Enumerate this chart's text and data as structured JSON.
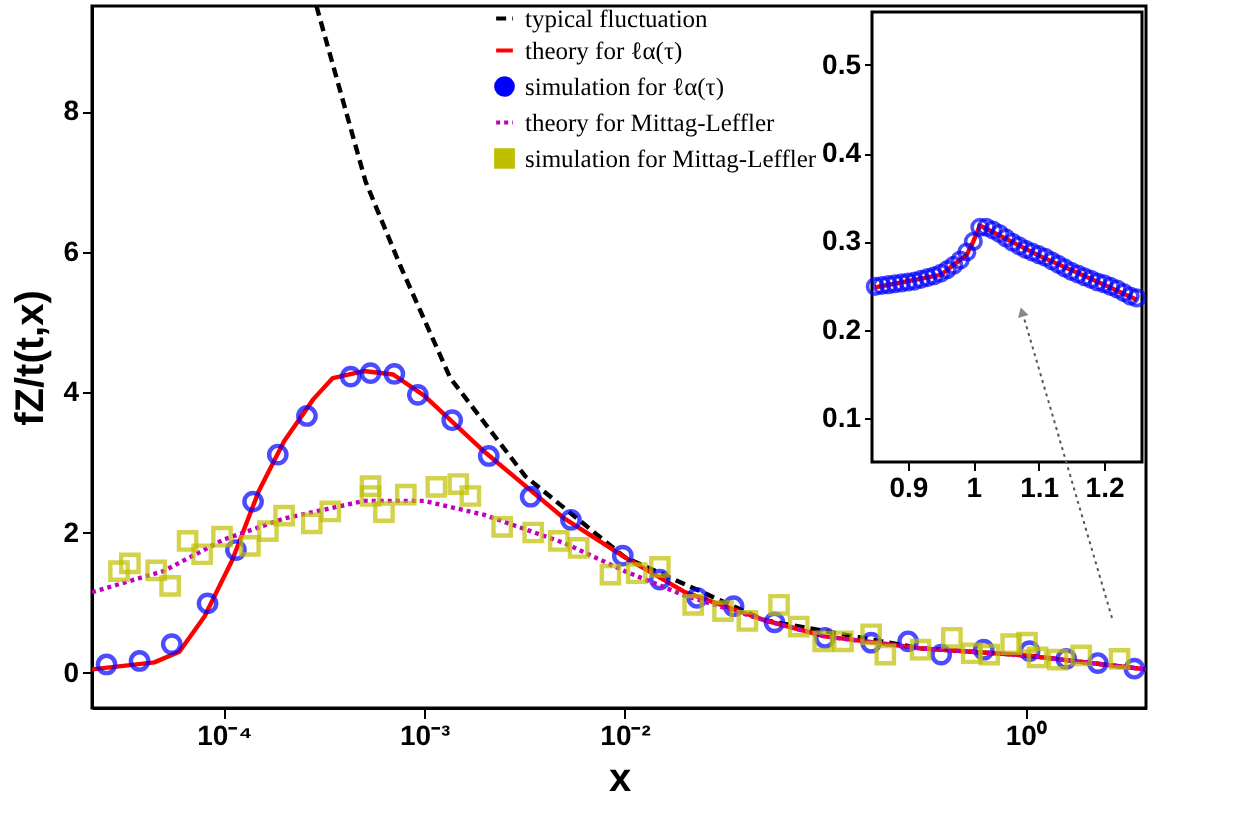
{
  "chart_data": [
    {
      "type": "line",
      "xlabel": "x",
      "ylabel": "fZ/t(t,x)",
      "log": "x",
      "xlim": [
        2.2e-05,
        4
      ],
      "ylim": [
        -0.5,
        9.5
      ],
      "xticks": [
        {
          "value": 0.0001,
          "label": "10⁻⁴"
        },
        {
          "value": 0.001,
          "label": "10⁻³"
        },
        {
          "value": 0.01,
          "label": "10⁻²"
        },
        {
          "value": 1,
          "label": "10⁰"
        }
      ],
      "yticks": [
        0,
        2,
        4,
        6,
        8
      ],
      "grid": false,
      "legend": "top",
      "series": [
        {
          "name": "typical fluctuation",
          "line_style": "dashed",
          "color": "#000000",
          "x": [
            0.00029,
            0.00051,
            0.00076,
            0.00135,
            0.0032,
            0.01,
            0.05,
            0.3,
            1,
            4
          ],
          "values": [
            9.5,
            7.0,
            5.8,
            4.2,
            2.8,
            1.65,
            0.75,
            0.35,
            0.25,
            0.05
          ]
        },
        {
          "name": "theory for ℓα(τ)",
          "line_style": "solid",
          "color": "#ff0000",
          "x": [
            2.2e-05,
            4.5e-05,
            6e-05,
            8e-05,
            0.00011,
            0.00015,
            0.0002,
            0.00028,
            0.00035,
            0.0005,
            0.0007,
            0.001,
            0.002,
            0.005,
            0.01,
            0.02,
            0.05,
            0.1,
            0.3,
            1,
            2,
            4
          ],
          "values": [
            0.05,
            0.15,
            0.3,
            0.8,
            1.6,
            2.6,
            3.3,
            3.9,
            4.2,
            4.3,
            4.25,
            3.95,
            3.15,
            2.2,
            1.65,
            1.15,
            0.75,
            0.52,
            0.35,
            0.25,
            0.15,
            0.05
          ]
        },
        {
          "name": "simulation for ℓα(τ)",
          "type": "scatter",
          "marker": "circle",
          "color": "#0000ff",
          "x": [
            2.6e-05,
            3.8e-05,
            5.5e-05,
            8.3e-05,
            0.000115,
            0.00014,
            0.000186,
            0.00026,
            0.00043,
            0.00054,
            0.00071,
            0.00093,
            0.00138,
            0.0021,
            0.0034,
            0.0054,
            0.0098,
            0.015,
            0.023,
            0.035,
            0.056,
            0.1,
            0.17,
            0.26,
            0.38,
            0.62,
            1.05,
            1.6,
            2.3,
            3.5
          ],
          "values": [
            0.12,
            0.17,
            0.41,
            0.99,
            1.75,
            2.44,
            3.11,
            3.66,
            4.22,
            4.27,
            4.26,
            3.96,
            3.6,
            3.09,
            2.51,
            2.18,
            1.67,
            1.33,
            1.07,
            0.95,
            0.72,
            0.5,
            0.43,
            0.45,
            0.26,
            0.33,
            0.31,
            0.2,
            0.14,
            0.06
          ]
        },
        {
          "name": "theory for Mittag-Leffler",
          "line_style": "dotted",
          "color": "#bf00bf",
          "x": [
            2.2e-05,
            5e-05,
            0.0001,
            0.0002,
            0.0005,
            0.001,
            0.002,
            0.005,
            0.01,
            0.02,
            0.05,
            0.1,
            0.3,
            1,
            4
          ],
          "values": [
            1.15,
            1.45,
            1.9,
            2.2,
            2.45,
            2.45,
            2.25,
            1.85,
            1.45,
            1.1,
            0.75,
            0.52,
            0.35,
            0.25,
            0.05
          ]
        },
        {
          "name": "simulation for Mittag-Leffler",
          "type": "scatter",
          "marker": "square",
          "color": "#bfbf00",
          "x": [
            3e-05,
            3.4e-05,
            4.6e-05,
            5.4e-05,
            6.6e-05,
            7.8e-05,
            9.8e-05,
            0.000135,
            0.000166,
            0.0002,
            0.000275,
            0.00034,
            0.00054,
            0.00054,
            0.00063,
            0.00081,
            0.00115,
            0.00148,
            0.0017,
            0.00245,
            0.0035,
            0.0047,
            0.0059,
            0.0085,
            0.0115,
            0.015,
            0.022,
            0.031,
            0.041,
            0.059,
            0.074,
            0.098,
            0.123,
            0.17,
            0.2,
            0.3,
            0.43,
            0.54,
            0.66,
            0.85,
            1.02,
            1.15,
            1.45,
            1.9,
            2.95
          ],
          "values": [
            1.45,
            1.56,
            1.46,
            1.24,
            1.88,
            1.69,
            1.94,
            1.81,
            2.02,
            2.24,
            2.13,
            2.3,
            2.66,
            2.52,
            2.29,
            2.54,
            2.65,
            2.69,
            2.52,
            2.08,
            2.0,
            1.88,
            1.78,
            1.4,
            1.42,
            1.51,
            0.97,
            0.88,
            0.74,
            0.97,
            0.66,
            0.45,
            0.45,
            0.55,
            0.26,
            0.33,
            0.5,
            0.28,
            0.26,
            0.41,
            0.43,
            0.22,
            0.19,
            0.25,
            0.2
          ]
        }
      ]
    },
    {
      "type": "scatter",
      "xlim": [
        0.845,
        1.258
      ],
      "ylim": [
        0.05,
        0.56
      ],
      "xticks": [
        0.9,
        1,
        1.1,
        1.2
      ],
      "yticks": [
        0.1,
        0.2,
        0.3,
        0.4,
        0.5
      ],
      "grid": false,
      "series": [
        {
          "type": "line",
          "line_style": "solid",
          "color": "#ff0000",
          "x": [
            0.85,
            0.95,
            0.99,
            1.0,
            1.01,
            1.05,
            1.1,
            1.2,
            1.25
          ],
          "values": [
            0.248,
            0.262,
            0.285,
            0.3,
            0.318,
            0.303,
            0.284,
            0.251,
            0.234
          ]
        },
        {
          "marker": "circle",
          "color": "#0000ff",
          "x": [
            0.85,
            0.86,
            0.87,
            0.88,
            0.89,
            0.9,
            0.91,
            0.92,
            0.93,
            0.94,
            0.95,
            0.96,
            0.97,
            0.98,
            0.99,
            1.0,
            1.01,
            1.02,
            1.03,
            1.04,
            1.05,
            1.06,
            1.07,
            1.08,
            1.09,
            1.1,
            1.11,
            1.12,
            1.13,
            1.14,
            1.15,
            1.16,
            1.17,
            1.18,
            1.19,
            1.2,
            1.21,
            1.22,
            1.23,
            1.24,
            1.25
          ],
          "values": [
            0.249,
            0.25,
            0.251,
            0.252,
            0.253,
            0.254,
            0.255,
            0.257,
            0.259,
            0.261,
            0.264,
            0.268,
            0.273,
            0.279,
            0.288,
            0.3,
            0.316,
            0.316,
            0.313,
            0.309,
            0.304,
            0.299,
            0.295,
            0.291,
            0.288,
            0.285,
            0.282,
            0.278,
            0.274,
            0.27,
            0.266,
            0.263,
            0.26,
            0.257,
            0.254,
            0.252,
            0.249,
            0.246,
            0.242,
            0.238,
            0.236
          ]
        }
      ]
    }
  ]
}
